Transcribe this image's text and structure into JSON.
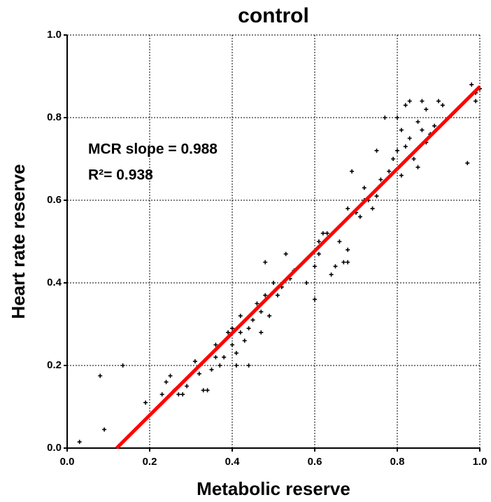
{
  "chart_data": {
    "type": "scatter",
    "title": "control",
    "x_label": "Metabolic reserve",
    "y_label": "Heart rate reserve",
    "xlim": [
      0,
      1
    ],
    "ylim": [
      0,
      1
    ],
    "xticks": [
      {
        "value": 0,
        "label": "0.0"
      },
      0.2,
      0.4,
      0.6,
      0.8,
      {
        "value": 1,
        "label": "1.0"
      }
    ],
    "yticks": [
      {
        "value": 0,
        "label": "0.0"
      },
      0.2,
      0.4,
      0.6,
      0.8,
      {
        "value": 1,
        "label": "1.0"
      }
    ],
    "grid": true,
    "color": "#000000",
    "x": [
      0.03,
      0.08,
      0.09,
      0.135,
      0.19,
      0.23,
      0.24,
      0.25,
      0.26,
      0.27,
      0.28,
      0.29,
      0.31,
      0.32,
      0.33,
      0.34,
      0.35,
      0.36,
      0.36,
      0.37,
      0.38,
      0.39,
      0.4,
      0.4,
      0.41,
      0.41,
      0.42,
      0.42,
      0.43,
      0.44,
      0.44,
      0.45,
      0.46,
      0.47,
      0.47,
      0.48,
      0.48,
      0.49,
      0.5,
      0.51,
      0.52,
      0.53,
      0.54,
      0.55,
      0.58,
      0.6,
      0.6,
      0.61,
      0.61,
      0.62,
      0.63,
      0.64,
      0.65,
      0.66,
      0.67,
      0.68,
      0.68,
      0.68,
      0.69,
      0.7,
      0.71,
      0.72,
      0.72,
      0.73,
      0.74,
      0.75,
      0.75,
      0.76,
      0.77,
      0.78,
      0.79,
      0.8,
      0.8,
      0.81,
      0.81,
      0.82,
      0.82,
      0.83,
      0.83,
      0.84,
      0.85,
      0.85,
      0.86,
      0.86,
      0.87,
      0.87,
      0.88,
      0.89,
      0.9,
      0.91,
      0.97,
      0.98,
      0.99,
      1.0,
      0.99
    ],
    "values": [
      0.015,
      0.175,
      0.045,
      0.2,
      0.11,
      0.13,
      0.16,
      0.175,
      0.14,
      0.13,
      0.13,
      0.15,
      0.21,
      0.18,
      0.14,
      0.14,
      0.19,
      0.25,
      0.22,
      0.2,
      0.22,
      0.28,
      0.25,
      0.29,
      0.2,
      0.23,
      0.28,
      0.32,
      0.26,
      0.2,
      0.29,
      0.31,
      0.35,
      0.28,
      0.33,
      0.37,
      0.45,
      0.32,
      0.4,
      0.37,
      0.39,
      0.47,
      0.41,
      0.43,
      0.4,
      0.44,
      0.36,
      0.5,
      0.47,
      0.52,
      0.52,
      0.42,
      0.44,
      0.5,
      0.45,
      0.45,
      0.48,
      0.58,
      0.67,
      0.57,
      0.56,
      0.6,
      0.63,
      0.6,
      0.58,
      0.61,
      0.72,
      0.65,
      0.8,
      0.67,
      0.7,
      0.72,
      0.8,
      0.66,
      0.77,
      0.83,
      0.73,
      0.75,
      0.84,
      0.7,
      0.68,
      0.79,
      0.84,
      0.77,
      0.82,
      0.74,
      0.76,
      0.78,
      0.84,
      0.83,
      0.69,
      0.88,
      0.84,
      0.87,
      0.86
    ],
    "fit": {
      "x": [
        0.12,
        1.0
      ],
      "values": [
        0,
        0.875
      ],
      "color": "#ff0000"
    },
    "annotations": [
      "MCR slope = 0.988",
      "R²= 0.938"
    ]
  }
}
